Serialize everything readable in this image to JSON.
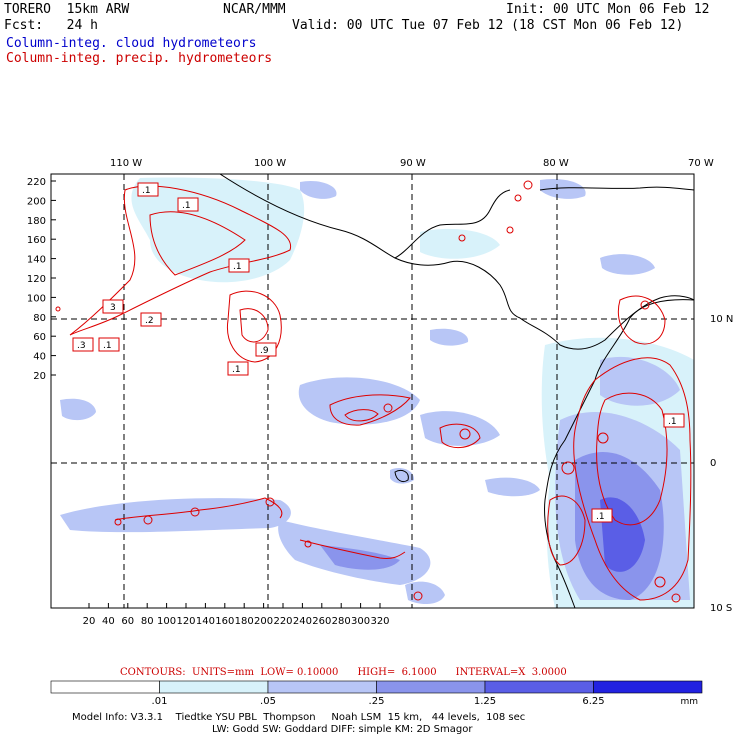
{
  "header": {
    "model_name": "TORERO  15km ARW",
    "center": "NCAR/MMM",
    "init": "Init: 00 UTC Mon 06 Feb 12",
    "fcst": "Fcst:   24 h",
    "valid": "Valid: 00 UTC Tue 07 Feb 12 (18 CST Mon 06 Feb 12)",
    "field_cloud": "Column-integ. cloud hydrometeors",
    "field_precip": "Column-integ. precip. hydrometeors"
  },
  "map": {
    "lon_labels": [
      "110 W",
      "100 W",
      "90 W",
      "80 W",
      "70 W"
    ],
    "lat_labels": [
      "10 N",
      "0",
      "10 S"
    ],
    "x_ticks": [
      "20",
      "40",
      "60",
      "80",
      "100",
      "120",
      "140",
      "160",
      "180",
      "200",
      "220",
      "240",
      "260",
      "280",
      "300",
      "320"
    ],
    "y_ticks": [
      "220",
      "200",
      "180",
      "160",
      "140",
      "120",
      "100",
      "80",
      "60",
      "40",
      "20"
    ],
    "contour_labels": [
      ".1",
      ".1",
      ".1",
      "3",
      ".2",
      ".3",
      ".1",
      ".1",
      ".9",
      ".1",
      ".1",
      ".1"
    ]
  },
  "contour_info": "CONTOURS:  UNITS=mm  LOW= 0.10000      HIGH=  6.1000      INTERVAL=X  3.0000",
  "colorbar": {
    "labels": [
      ".01",
      ".05",
      ".25",
      "1.25",
      "6.25"
    ],
    "unit": "mm",
    "colors": [
      "#ffffff",
      "#d8f2fa",
      "#b8c6f6",
      "#8a94ec",
      "#5a5ee6",
      "#2222e0"
    ]
  },
  "model_info": {
    "line1": "Model Info: V3.3.1    Tiedtke YSU PBL  Thompson     Noah LSM  15 km,   44 levels,  108 sec",
    "line2": "LW: Godd SW: Goddard DIFF: simple KM: 2D Smagor"
  }
}
